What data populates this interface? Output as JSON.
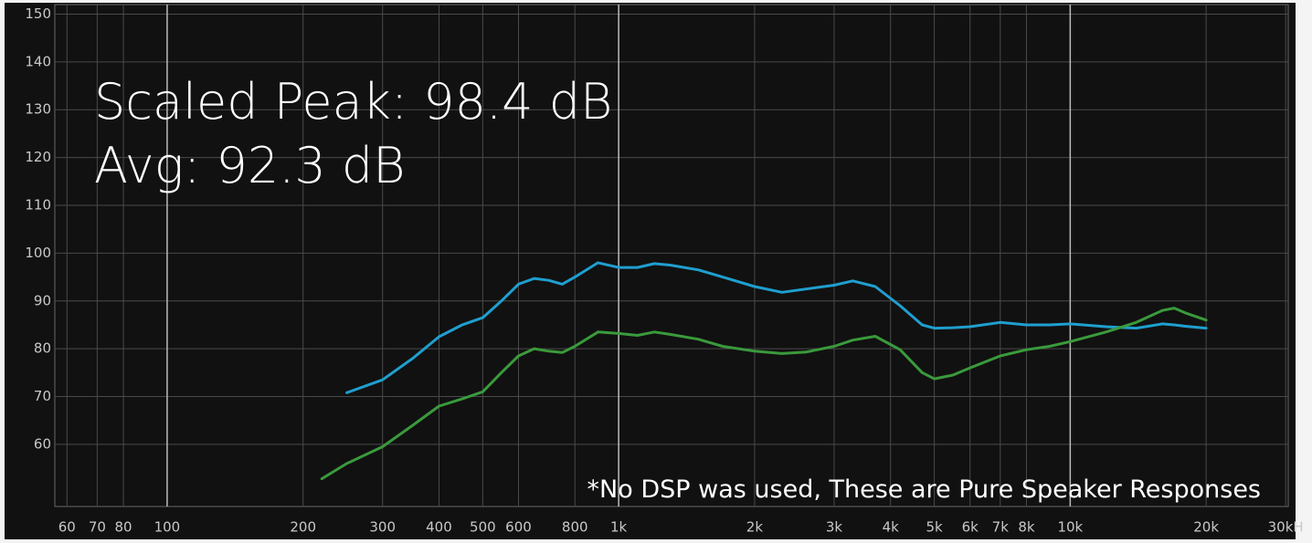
{
  "chart_data": {
    "type": "line",
    "annotations": [
      "Scaled Peak: 98.4 dB",
      "Avg: 92.3 dB"
    ],
    "note": "*No DSP was used, These are Pure Speaker Responses",
    "log_x": true,
    "grid": true,
    "x": [
      220,
      250,
      300,
      350,
      400,
      450,
      500,
      550,
      600,
      650,
      700,
      750,
      800,
      900,
      1000,
      1100,
      1200,
      1300,
      1500,
      1700,
      2000,
      2300,
      2600,
      3000,
      3300,
      3700,
      4200,
      4700,
      5000,
      5500,
      6000,
      7000,
      8000,
      9000,
      10000,
      12000,
      14000,
      16000,
      17000,
      18000,
      20000
    ],
    "series": [
      {
        "color": "#1f9fcf",
        "values": [
          null,
          70.8,
          73.5,
          78,
          82.5,
          85,
          86.5,
          90,
          93.5,
          94.7,
          94.3,
          93.5,
          95,
          98,
          97,
          97,
          97.8,
          97.5,
          96.5,
          95,
          93,
          91.8,
          92.5,
          93.3,
          94.2,
          93,
          89,
          85,
          84.3,
          84.4,
          84.6,
          85.5,
          85,
          85,
          85.2,
          84.6,
          84.3,
          85.2,
          85,
          84.7,
          84.3
        ]
      },
      {
        "color": "#3a9a3c",
        "values": [
          52.8,
          56,
          59.5,
          64,
          68,
          69.5,
          71,
          75,
          78.5,
          80,
          79.5,
          79.2,
          80.5,
          83.5,
          83.2,
          82.8,
          83.5,
          83,
          82,
          80.5,
          79.5,
          79,
          79.3,
          80.5,
          81.8,
          82.6,
          79.8,
          75,
          73.7,
          74.5,
          76,
          78.5,
          79.8,
          80.5,
          81.5,
          83.5,
          85.5,
          88,
          88.5,
          87.5,
          86
        ]
      }
    ],
    "xlim": [
      56.4,
      30400
    ],
    "xticks": [
      60,
      70,
      80,
      100,
      200,
      300,
      400,
      500,
      600,
      800,
      {
        "value": 1000,
        "label": "1k"
      },
      {
        "value": 2000,
        "label": "2k"
      },
      {
        "value": 3000,
        "label": "3k"
      },
      {
        "value": 4000,
        "label": "4k"
      },
      {
        "value": 5000,
        "label": "5k"
      },
      {
        "value": 6000,
        "label": "6k"
      },
      {
        "value": 7000,
        "label": "7k"
      },
      {
        "value": 8000,
        "label": "8k"
      },
      {
        "value": 10000,
        "label": "10k"
      },
      {
        "value": 20000,
        "label": "20k"
      },
      {
        "value": 30000,
        "label": "30kH"
      }
    ],
    "ylim": [
      47,
      152
    ],
    "yticks": [
      60,
      70,
      80,
      90,
      100,
      110,
      120,
      130,
      140,
      150
    ]
  }
}
